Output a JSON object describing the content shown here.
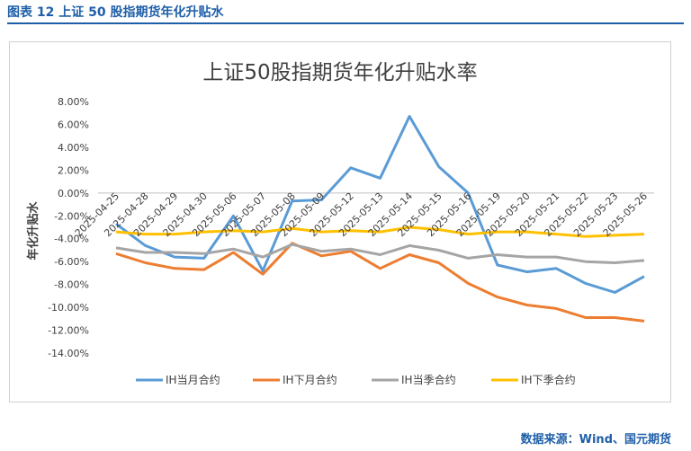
{
  "caption": "图表 12  上证 50 股指期货年化升贴水",
  "source": "数据来源：Wind、国元期货",
  "colors": {
    "accent": "#1f5fa8",
    "ih_current": "#5b9bd5",
    "ih_next": "#ed7d31",
    "ih_quarter": "#a5a5a5",
    "ih_next_quarter": "#ffc000"
  },
  "chart_data": {
    "type": "line",
    "title": "上证50股指期货年化升贴水率",
    "xlabel": "",
    "ylabel": "年化升贴水",
    "ylim": [
      -14,
      8
    ],
    "ytick_step": 2,
    "ytick_labels": [
      "8.00%",
      "6.00%",
      "4.00%",
      "2.00%",
      "0.00%",
      "-2.00%",
      "-4.00%",
      "-6.00%",
      "-8.00%",
      "-10.00%",
      "-12.00%",
      "-14.00%"
    ],
    "grid": false,
    "legend_position": "bottom",
    "categories": [
      "2025-04-25",
      "2025-04-28",
      "2025-04-29",
      "2025-04-30",
      "2025-05-06",
      "2025-05-07",
      "2025-05-08",
      "2025-05-09",
      "2025-05-12",
      "2025-05-13",
      "2025-05-14",
      "2025-05-15",
      "2025-05-16",
      "2025-05-19",
      "2025-05-20",
      "2025-05-21",
      "2025-05-22",
      "2025-05-23",
      "2025-05-26"
    ],
    "series": [
      {
        "name": "IH当月合约",
        "color": "#5b9bd5",
        "values": [
          -2.7,
          -4.6,
          -5.6,
          -5.7,
          -2.0,
          -6.8,
          -0.7,
          -0.6,
          2.2,
          1.3,
          6.7,
          2.3,
          0.0,
          -6.3,
          -6.9,
          -6.6,
          -7.9,
          -8.7,
          -7.3
        ]
      },
      {
        "name": "IH下月合约",
        "color": "#ed7d31",
        "values": [
          -5.3,
          -6.1,
          -6.6,
          -6.7,
          -5.2,
          -7.1,
          -4.4,
          -5.5,
          -5.1,
          -6.6,
          -5.4,
          -6.1,
          -7.9,
          -9.1,
          -9.8,
          -10.1,
          -10.9,
          -10.9,
          -11.2
        ]
      },
      {
        "name": "IH当季合约",
        "color": "#a5a5a5",
        "values": [
          -4.8,
          -5.2,
          -5.2,
          -5.3,
          -4.9,
          -5.6,
          -4.5,
          -5.1,
          -4.9,
          -5.4,
          -4.6,
          -5.0,
          -5.7,
          -5.4,
          -5.6,
          -5.6,
          -6.0,
          -6.1,
          -5.9
        ]
      },
      {
        "name": "IH下季合约",
        "color": "#ffc000",
        "values": [
          -3.4,
          -3.6,
          -3.6,
          -3.4,
          -3.3,
          -3.4,
          -3.1,
          -3.4,
          -3.3,
          -3.4,
          -3.0,
          -3.2,
          -3.6,
          -3.4,
          -3.4,
          -3.6,
          -3.8,
          -3.7,
          -3.6
        ]
      }
    ]
  }
}
